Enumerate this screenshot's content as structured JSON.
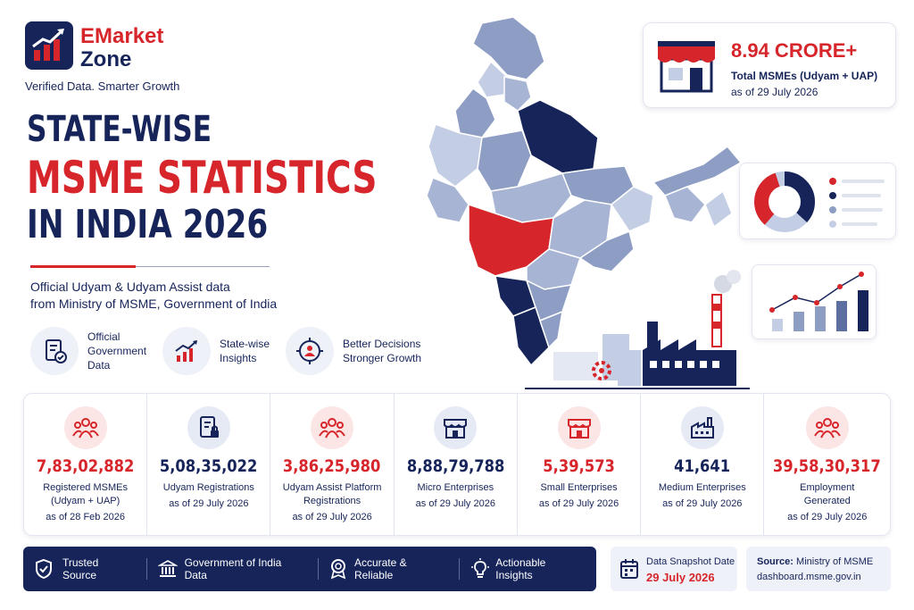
{
  "brand": {
    "name_line1": "EMarket",
    "name_line2": "Zone",
    "tagline": "Verified Data. Smarter Growth"
  },
  "title": {
    "line1": "STATE-WISE",
    "line2": "MSME STATISTICS",
    "line3": "IN INDIA 2026"
  },
  "subtitle": {
    "line1": "Official Udyam & Udyam Assist data",
    "line2": "from Ministry of MSME, Government of India"
  },
  "features": [
    {
      "icon": "document-check-icon",
      "label_lines": [
        "Official",
        "Government",
        "Data"
      ]
    },
    {
      "icon": "bar-chart-growth-icon",
      "label_lines": [
        "State-wise",
        "Insights"
      ]
    },
    {
      "icon": "target-people-icon",
      "label_lines": [
        "Better Decisions",
        "Stronger Growth"
      ]
    }
  ],
  "kpi": {
    "value": "8.94 CRORE+",
    "label": "Total MSMEs (Udyam + UAP)",
    "date": "as of 29 July 2026",
    "icon": "storefront-icon"
  },
  "stats": [
    {
      "icon": "people-group-icon",
      "value": "7,83,02,882",
      "label_lines": [
        "Registered MSMEs",
        "(Udyam + UAP)"
      ],
      "date": "as of 28 Feb 2026",
      "color": "#d7262b"
    },
    {
      "icon": "document-lock-icon",
      "value": "5,08,35,022",
      "label_lines": [
        "Udyam Registrations"
      ],
      "date": "as of 29 July 2026",
      "color": "#16245a"
    },
    {
      "icon": "people-group-icon",
      "value": "3,86,25,980",
      "label_lines": [
        "Udyam Assist Platform",
        "Registrations"
      ],
      "date": "as of 29 July 2026",
      "color": "#d7262b"
    },
    {
      "icon": "shop-icon",
      "value": "8,88,79,788",
      "label_lines": [
        "Micro Enterprises"
      ],
      "date": "as of 29 July 2026",
      "color": "#16245a"
    },
    {
      "icon": "storefront-icon",
      "value": "5,39,573",
      "label_lines": [
        "Small Enterprises"
      ],
      "date": "as of 29 July 2026",
      "color": "#d7262b"
    },
    {
      "icon": "factory-icon",
      "value": "41,641",
      "label_lines": [
        "Medium Enterprises"
      ],
      "date": "as of 29 July 2026",
      "color": "#16245a"
    },
    {
      "icon": "people-group-icon",
      "value": "39,58,30,317",
      "label_lines": [
        "Employment",
        "Generated"
      ],
      "date": "as of 29 July 2026",
      "color": "#d7262b"
    }
  ],
  "bottom_bar": [
    {
      "icon": "shield-check-icon",
      "label": "Trusted Source"
    },
    {
      "icon": "government-building-icon",
      "label": "Government of India Data"
    },
    {
      "icon": "award-badge-icon",
      "label": "Accurate & Reliable"
    },
    {
      "icon": "lightbulb-icon",
      "label": "Actionable Insights"
    }
  ],
  "snapshot": {
    "label": "Data Snapshot Date",
    "date": "29 July 2026",
    "icon": "calendar-icon"
  },
  "source": {
    "label": "Source:",
    "org": "Ministry of MSME",
    "url": "dashboard.msme.gov.in"
  },
  "colors": {
    "navy": "#16245a",
    "red": "#d7262b",
    "light_blue": "#8d9dc4",
    "pale_blue": "#c3cde4"
  }
}
